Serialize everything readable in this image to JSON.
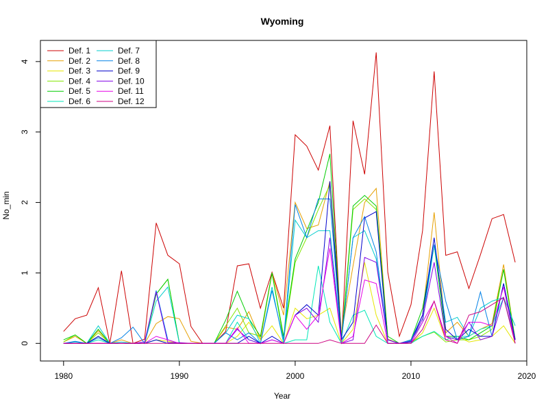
{
  "chart_data": {
    "type": "line",
    "title": "Wyoming",
    "xlabel": "Year",
    "ylabel": "No_min",
    "xlim": [
      1978,
      2020
    ],
    "ylim": [
      -0.25,
      4.3
    ],
    "x_ticks": [
      1980,
      1990,
      2000,
      2010,
      2020
    ],
    "y_ticks": [
      0,
      1,
      2,
      3,
      4
    ],
    "legend_position": "top-left",
    "x": [
      1980,
      1981,
      1982,
      1983,
      1984,
      1985,
      1986,
      1987,
      1988,
      1989,
      1990,
      1991,
      1992,
      1993,
      1994,
      1995,
      1996,
      1997,
      1998,
      1999,
      2000,
      2001,
      2002,
      2003,
      2004,
      2005,
      2006,
      2007,
      2008,
      2009,
      2010,
      2011,
      2012,
      2013,
      2014,
      2015,
      2016,
      2017,
      2018,
      2019
    ],
    "series": [
      {
        "name": "Def. 1",
        "color": "#CC0000",
        "values": [
          0.17,
          0.35,
          0.4,
          0.79,
          0,
          1.03,
          0,
          0.06,
          1.71,
          1.25,
          1.13,
          0.24,
          0,
          0,
          0.17,
          1.1,
          1.13,
          0.5,
          1.01,
          0.5,
          2.96,
          2.8,
          2.46,
          3.09,
          0.01,
          3.16,
          2.4,
          4.13,
          1.01,
          0.1,
          0.55,
          1.6,
          3.86,
          1.25,
          1.3,
          0.78,
          1.26,
          1.77,
          1.83,
          1.15
        ]
      },
      {
        "name": "Def. 2",
        "color": "#E69F00",
        "values": [
          0.02,
          0.1,
          0,
          0.18,
          0,
          0.05,
          0,
          0,
          0.28,
          0.38,
          0.35,
          0.03,
          0,
          0,
          0.23,
          0.2,
          0.45,
          0.05,
          1.0,
          0.4,
          2.0,
          1.63,
          1.68,
          2.3,
          0.14,
          1.1,
          2.0,
          2.2,
          0.06,
          0,
          0.04,
          0.4,
          1.86,
          0.15,
          0.3,
          0.1,
          0.2,
          0.28,
          1.12,
          0.05
        ]
      },
      {
        "name": "Def. 3",
        "color": "#E6E600",
        "values": [
          0,
          0,
          0,
          0.1,
          0,
          0,
          0,
          0,
          0.05,
          0.03,
          0,
          0,
          0,
          0,
          0,
          0.1,
          0.3,
          0.05,
          0.25,
          0,
          0.5,
          0.35,
          0.4,
          0.5,
          0,
          0.2,
          1.15,
          0.4,
          0,
          0,
          0,
          0.15,
          0.5,
          0.05,
          0.1,
          0.02,
          0.05,
          0.1,
          0.25,
          0
        ]
      },
      {
        "name": "Def. 4",
        "color": "#80E600",
        "values": [
          0.02,
          0.12,
          0,
          0.15,
          0,
          0,
          0,
          0,
          0.7,
          0.91,
          0,
          0,
          0,
          0,
          0.25,
          0.5,
          0.15,
          0.1,
          1.0,
          0.05,
          1.15,
          1.5,
          1.9,
          2.25,
          0.02,
          1.9,
          2.05,
          1.9,
          0.05,
          0,
          0.02,
          0.1,
          0.16,
          0.02,
          0.05,
          0.05,
          0.1,
          0.2,
          1.05,
          0.05
        ]
      },
      {
        "name": "Def. 5",
        "color": "#00CC00",
        "values": [
          0.05,
          0.12,
          0,
          0.2,
          0,
          0,
          0,
          0,
          0.7,
          0.91,
          0,
          0,
          0,
          0,
          0.33,
          0.74,
          0.35,
          0.1,
          1.0,
          0.1,
          1.2,
          1.6,
          2.0,
          2.69,
          0.05,
          1.95,
          2.1,
          1.95,
          0.1,
          0,
          0.05,
          0.5,
          1.4,
          0.1,
          0.1,
          0.05,
          0.15,
          0.25,
          1.05,
          0.05
        ]
      },
      {
        "name": "Def. 6",
        "color": "#00E6B8",
        "values": [
          0,
          0,
          0,
          0.05,
          0,
          0,
          0,
          0,
          0.05,
          0,
          0,
          0,
          0,
          0,
          0,
          0.3,
          0.05,
          0,
          0.05,
          0,
          0.05,
          0.05,
          1.1,
          0.3,
          0,
          0.4,
          0.47,
          0.1,
          0,
          0,
          0,
          0.1,
          0.17,
          0.05,
          0.1,
          0.1,
          0.2,
          0.25,
          0.65,
          0.05
        ]
      },
      {
        "name": "Def. 7",
        "color": "#00CCCC",
        "values": [
          0,
          0.02,
          0,
          0.25,
          0,
          0.02,
          0,
          0,
          0.6,
          0.8,
          0,
          0,
          0,
          0,
          0.15,
          0.4,
          0.35,
          0,
          0.8,
          0,
          1.75,
          1.5,
          1.6,
          1.6,
          0.05,
          1.5,
          1.6,
          1.2,
          0.05,
          0,
          0.04,
          0.3,
          1.4,
          0.3,
          0.37,
          0.1,
          0.5,
          0.6,
          0.65,
          0.25
        ]
      },
      {
        "name": "Def. 8",
        "color": "#0080E6",
        "values": [
          0,
          0.03,
          0,
          0.08,
          0,
          0.08,
          0.23,
          0,
          0.75,
          0.05,
          0,
          0,
          0,
          0,
          0.15,
          0.05,
          0.15,
          0,
          0.75,
          0.05,
          1.97,
          1.5,
          2.05,
          2.05,
          0.05,
          1.5,
          1.8,
          1.3,
          0.05,
          0,
          0.05,
          0.4,
          1.4,
          0.6,
          0.05,
          0.1,
          0.73,
          0.1,
          0.85,
          0.05
        ]
      },
      {
        "name": "Def. 9",
        "color": "#0000CC",
        "values": [
          0,
          0,
          0,
          0.1,
          0,
          0,
          0,
          0,
          0.05,
          0,
          0,
          0,
          0,
          0,
          0,
          0,
          0.1,
          0,
          0.1,
          0,
          0.4,
          0.55,
          0.4,
          2.3,
          0.05,
          0.3,
          1.78,
          1.87,
          0,
          0,
          0.02,
          0.4,
          1.5,
          0.2,
          0.05,
          0.2,
          0.1,
          0.1,
          0.85,
          0.05
        ]
      },
      {
        "name": "Def. 10",
        "color": "#8000E6",
        "values": [
          0,
          0,
          0,
          0,
          0,
          0,
          0,
          0.02,
          0.73,
          0.01,
          0.01,
          0,
          0,
          0,
          0,
          0.2,
          0.05,
          0,
          0.05,
          0,
          0.4,
          0.5,
          0.3,
          1.5,
          0,
          0.05,
          1.22,
          1.15,
          0.05,
          0,
          0.03,
          0.35,
          1.15,
          0.1,
          0.05,
          0.3,
          0.05,
          0.1,
          0.65,
          0
        ]
      },
      {
        "name": "Def. 11",
        "color": "#E600E6",
        "values": [
          0,
          0,
          0,
          0,
          0,
          0,
          0,
          0,
          0.1,
          0.05,
          0,
          0,
          0,
          0,
          0,
          0.22,
          0,
          0,
          0.05,
          0,
          0.4,
          0.2,
          0.4,
          1.35,
          0,
          0.1,
          0.9,
          0.85,
          0,
          0,
          0,
          0.3,
          0.6,
          0.1,
          0,
          0.3,
          0.3,
          0.25,
          0.8,
          0
        ]
      },
      {
        "name": "Def. 12",
        "color": "#CC0080",
        "values": [
          0,
          0,
          0,
          0,
          0,
          0,
          0,
          0,
          0,
          0,
          0,
          0,
          0,
          0,
          0,
          0,
          0,
          0,
          0,
          0,
          0,
          0,
          0,
          0.05,
          0,
          0,
          0,
          0.26,
          0,
          0,
          0,
          0.2,
          0.6,
          0.05,
          0,
          0.4,
          0.45,
          0.55,
          0.65,
          0
        ]
      }
    ]
  }
}
